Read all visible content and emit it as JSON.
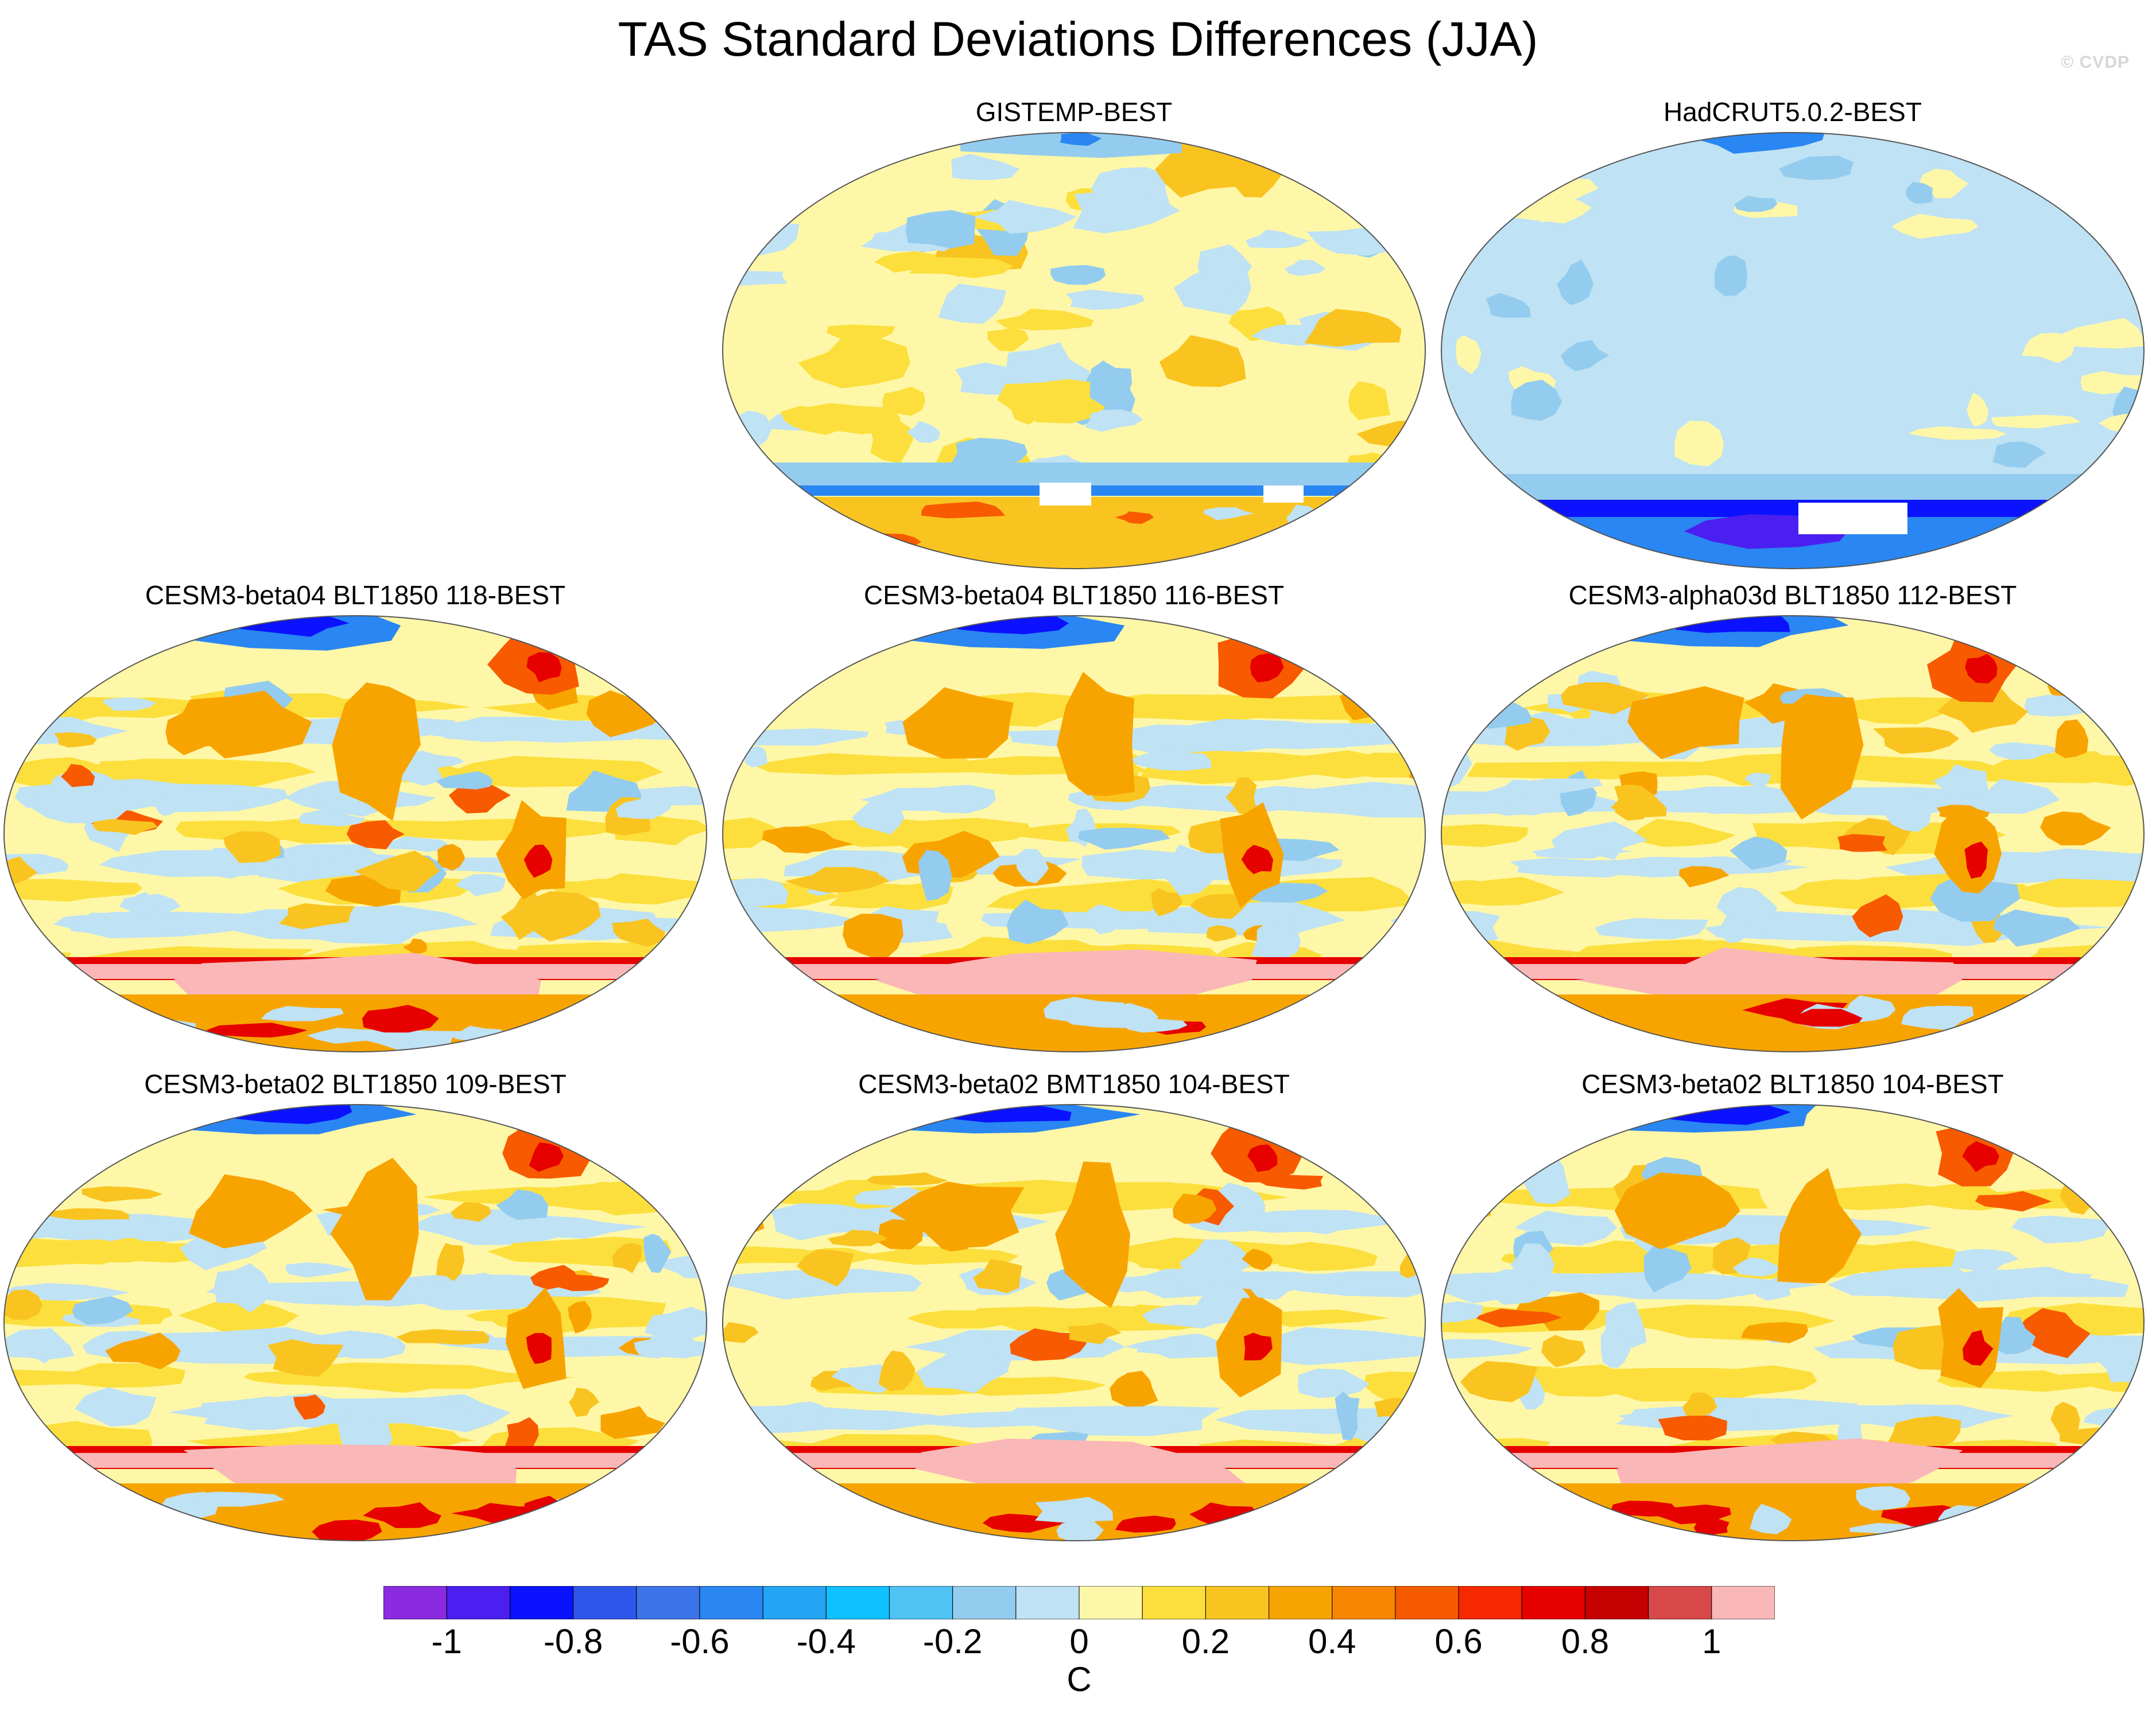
{
  "title": "TAS Standard Deviations Differences (JJA)",
  "watermark": "© CVDP",
  "panels": [
    {
      "id": "gistemp",
      "title": "GISTEMP-BEST",
      "style": "obs"
    },
    {
      "id": "hadcrut",
      "title": "HadCRUT5.0.2-BEST",
      "style": "obs-cool"
    },
    {
      "id": "beta04-118",
      "title": "CESM3-beta04 BLT1850 118-BEST",
      "style": "model"
    },
    {
      "id": "beta04-116",
      "title": "CESM3-beta04 BLT1850 116-BEST",
      "style": "model"
    },
    {
      "id": "alpha03d-112",
      "title": "CESM3-alpha03d BLT1850 112-BEST",
      "style": "model"
    },
    {
      "id": "beta02-109",
      "title": "CESM3-beta02 BLT1850 109-BEST",
      "style": "model"
    },
    {
      "id": "beta02-bmt104",
      "title": "CESM3-beta02 BMT1850 104-BEST",
      "style": "model"
    },
    {
      "id": "beta02-blt104",
      "title": "CESM3-beta02 BLT1850 104-BEST",
      "style": "model"
    }
  ],
  "colorbar": {
    "colors": [
      "#8a2be2",
      "#4b1ff0",
      "#0a12ff",
      "#2f56ea",
      "#3b74e8",
      "#2a86f2",
      "#23a4f5",
      "#10c1ff",
      "#4fc3f4",
      "#93ccee",
      "#bfe2f4",
      "#fff7a8",
      "#fcdf3c",
      "#f9c420",
      "#f8a400",
      "#f88500",
      "#f85a00",
      "#f82800",
      "#e60000",
      "#c40000",
      "#d84848",
      "#fab7b7"
    ],
    "tick_labels": [
      "-1",
      "-0.8",
      "-0.6",
      "-0.4",
      "-0.2",
      "0",
      "0.2",
      "0.4",
      "0.6",
      "0.8",
      "1"
    ],
    "unit": "C"
  }
}
